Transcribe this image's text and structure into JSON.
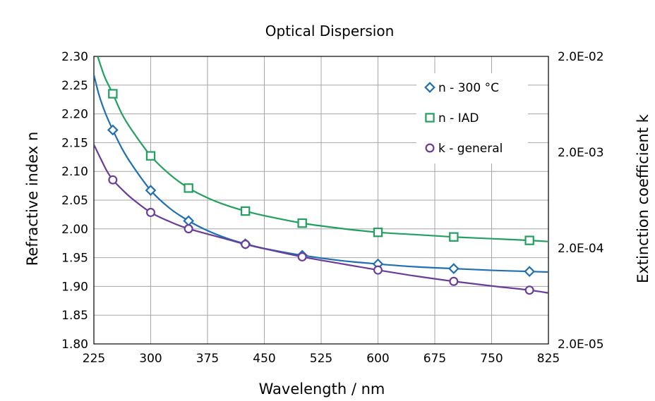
{
  "chart_data": {
    "type": "line",
    "title": "Optical Dispersion",
    "xlabel": "Wavelength / nm",
    "ylabel": "Refractive index n",
    "y2label": "Extinction coefficient k",
    "xlim": [
      225,
      825
    ],
    "ylim": [
      1.8,
      2.3
    ],
    "y2lim": [
      2e-05,
      0.02
    ],
    "y2scale": "log",
    "x_ticks": [
      "225",
      "300",
      "375",
      "450",
      "525",
      "600",
      "675",
      "750",
      "825"
    ],
    "y_ticks": [
      "1.80",
      "1.85",
      "1.90",
      "1.95",
      "2.00",
      "2.05",
      "2.10",
      "2.15",
      "2.20",
      "2.25",
      "2.30"
    ],
    "y2_ticks": [
      "2.0E-05",
      "2.0E-04",
      "2.0E-03",
      "2.0E-02"
    ],
    "grid": true,
    "legend_position": "top-right",
    "series": [
      {
        "name": "n - 300 °C",
        "axis": "left",
        "color": "#1f6fb4",
        "marker": "diamond",
        "points": {
          "x": [
            250,
            300,
            350,
            425,
            500,
            600,
            700,
            800
          ],
          "y": [
            2.172,
            2.067,
            2.014,
            1.974,
            1.954,
            1.939,
            1.931,
            1.926
          ]
        },
        "curve": {
          "x": [
            225,
            232,
            240,
            250,
            262,
            275,
            300,
            325,
            350,
            375,
            400,
            425,
            450,
            500,
            550,
            600,
            650,
            700,
            750,
            800,
            825
          ],
          "y": [
            2.268,
            2.232,
            2.202,
            2.172,
            2.14,
            2.112,
            2.067,
            2.036,
            2.014,
            1.997,
            1.984,
            1.974,
            1.966,
            1.954,
            1.945,
            1.939,
            1.934,
            1.931,
            1.928,
            1.926,
            1.925
          ]
        }
      },
      {
        "name": "n - IAD",
        "axis": "left",
        "color": "#22a060",
        "marker": "square",
        "points": {
          "x": [
            250,
            300,
            350,
            425,
            500,
            600,
            700,
            800
          ],
          "y": [
            2.235,
            2.127,
            2.071,
            2.031,
            2.01,
            1.994,
            1.986,
            1.98
          ]
        },
        "curve": {
          "x": [
            230,
            235,
            240,
            250,
            262,
            275,
            300,
            325,
            350,
            375,
            400,
            425,
            450,
            500,
            550,
            600,
            650,
            700,
            750,
            800,
            825
          ],
          "y": [
            2.3,
            2.28,
            2.262,
            2.235,
            2.2,
            2.172,
            2.127,
            2.095,
            2.071,
            2.054,
            2.041,
            2.031,
            2.023,
            2.01,
            2.001,
            1.994,
            1.99,
            1.986,
            1.983,
            1.98,
            1.978
          ]
        }
      },
      {
        "name": "k - general",
        "axis": "right",
        "color": "#6a3d9a",
        "marker": "circle",
        "points": {
          "x": [
            250,
            300,
            350,
            425,
            500,
            600,
            700,
            800
          ],
          "y": [
            0.00103,
            0.000471,
            0.000318,
            0.000219,
            0.000162,
            0.000118,
            8.99e-05,
            7.28e-05
          ]
        },
        "curve": {
          "x": [
            225,
            235,
            242,
            250,
            262,
            275,
            300,
            325,
            350,
            400,
            425,
            450,
            500,
            550,
            600,
            650,
            700,
            750,
            800,
            825
          ],
          "y": [
            0.0024,
            0.00165,
            0.00128,
            0.00103,
            0.00082,
            0.00066,
            0.000471,
            0.000378,
            0.000318,
            0.000248,
            0.000219,
            0.000197,
            0.000162,
            0.000138,
            0.000118,
            0.000102,
            8.99e-05,
            8.05e-05,
            7.28e-05,
            6.8e-05
          ]
        }
      }
    ]
  }
}
